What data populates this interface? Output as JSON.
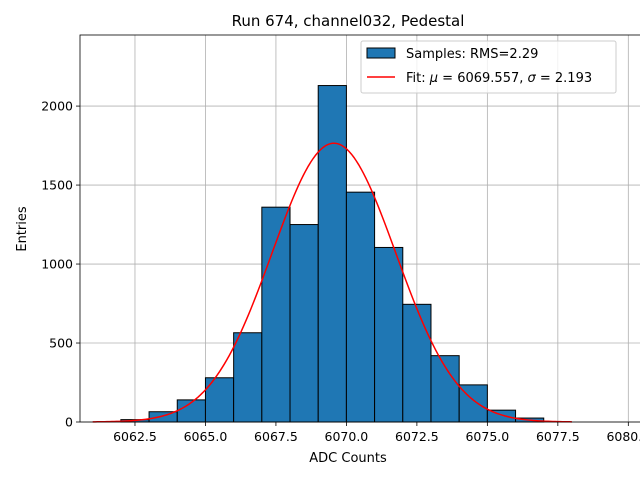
{
  "chart_data": {
    "type": "bar",
    "title": "Run 674, channel032, Pedestal",
    "xlabel": "ADC Counts",
    "ylabel": "Entries",
    "xlim": [
      6060.55,
      6080.45
    ],
    "ylim": [
      0,
      2450
    ],
    "grid": true,
    "xticks": [
      6062.5,
      6065.0,
      6067.5,
      6070.0,
      6072.5,
      6075.0,
      6077.5,
      6080.0
    ],
    "xtick_labels": [
      "6062.5",
      "6065.0",
      "6067.5",
      "6070.0",
      "6072.5",
      "6075.0",
      "6077.5",
      "6080.0"
    ],
    "yticks": [
      0,
      500,
      1000,
      1500,
      2000
    ],
    "ytick_labels": [
      "0",
      "500",
      "1000",
      "1500",
      "2000"
    ],
    "bar_color": "#1f77b4",
    "fit_color": "#ff0000",
    "bins": [
      {
        "left": 6062,
        "right": 6063,
        "value": 15
      },
      {
        "left": 6063,
        "right": 6064,
        "value": 65
      },
      {
        "left": 6064,
        "right": 6065,
        "value": 140
      },
      {
        "left": 6065,
        "right": 6066,
        "value": 280
      },
      {
        "left": 6066,
        "right": 6067,
        "value": 565
      },
      {
        "left": 6067,
        "right": 6068,
        "value": 1360
      },
      {
        "left": 6068,
        "right": 6069,
        "value": 1250
      },
      {
        "left": 6069,
        "right": 6070,
        "value": 2130
      },
      {
        "left": 6070,
        "right": 6071,
        "value": 1455
      },
      {
        "left": 6071,
        "right": 6072,
        "value": 1105
      },
      {
        "left": 6072,
        "right": 6073,
        "value": 745
      },
      {
        "left": 6073,
        "right": 6074,
        "value": 420
      },
      {
        "left": 6074,
        "right": 6075,
        "value": 235
      },
      {
        "left": 6075,
        "right": 6076,
        "value": 75
      },
      {
        "left": 6076,
        "right": 6077,
        "value": 25
      }
    ],
    "fit": {
      "mu": 6069.557,
      "sigma": 2.193,
      "amplitude": 1765,
      "x_range": [
        6061,
        6078
      ]
    },
    "legend": {
      "position": "upper right",
      "entries": [
        {
          "type": "patch",
          "label": "Samples: RMS=2.29"
        },
        {
          "type": "line",
          "label_prefix": "Fit: ",
          "mu_symbol": "μ",
          "mu_text": " = 6069.557, ",
          "sigma_symbol": "σ",
          "sigma_text": " = 2.193"
        }
      ]
    }
  }
}
